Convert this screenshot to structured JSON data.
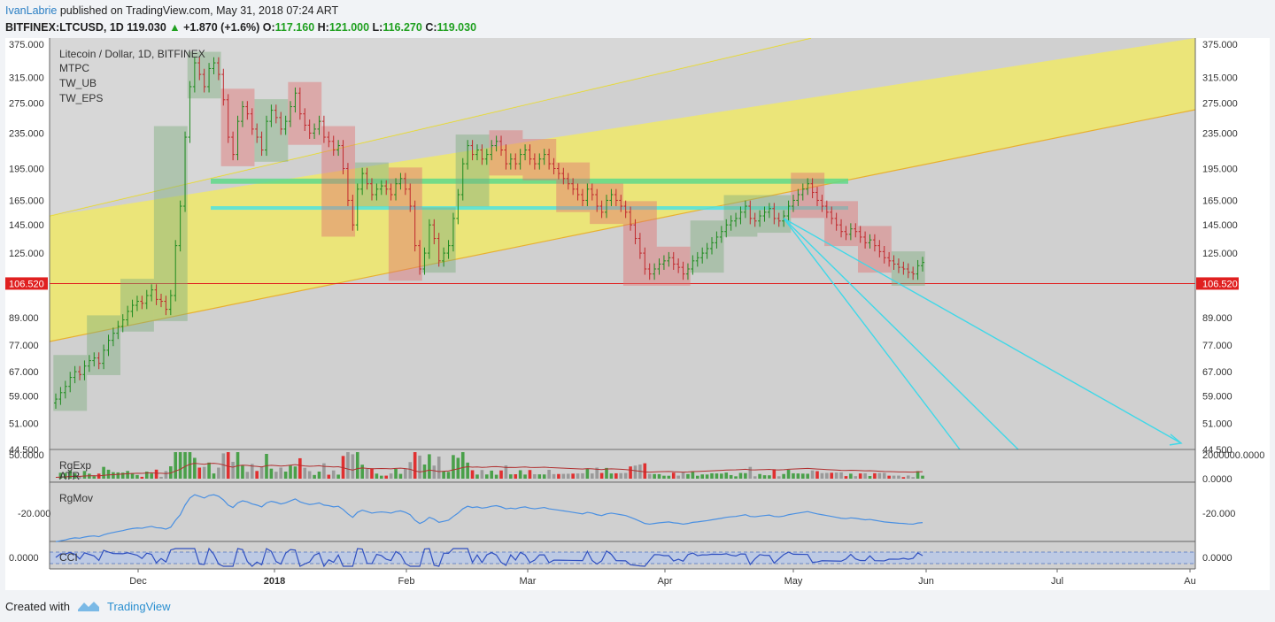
{
  "header": {
    "author": "IvanLabrie",
    "published": " published on TradingView.com, May 31, 2018 07:24 ART",
    "symbol_line": "BITFINEX:LTCUSD, 1D",
    "last": "119.030",
    "change_arrow": "▲",
    "change": "+1.870 (+1.6%)",
    "o_label": "O:",
    "o": "117.160",
    "h_label": "H:",
    "h": "121.000",
    "l_label": "L:",
    "l": "116.270",
    "c_label": "C:",
    "c": "119.030"
  },
  "legend": {
    "title": "Litecoin / Dollar, 1D, BITFINEX",
    "items": [
      "MTPC",
      "TW_UB",
      "TW_EPS"
    ]
  },
  "panes": {
    "rgexp": "RgExp",
    "atr": "ATR",
    "rgmov": "RgMov",
    "cci": "CCI"
  },
  "footer": {
    "created_with": "Created with",
    "brand": "TradingView"
  },
  "colors": {
    "up": "#1e8b1e",
    "down": "#c0282c",
    "channel": "#f0e96a",
    "zone_green": "#5fd98a",
    "zone_cyan": "#4fe3e0",
    "trend": "#3fd8e8",
    "support": "#e02020"
  },
  "chart_data": {
    "type": "candlestick",
    "symbol": "BITFINEX:LTCUSD",
    "interval": "1D",
    "scale": "log",
    "ylim": [
      44.5,
      375
    ],
    "y_ticks": [
      375,
      315,
      275,
      235,
      195,
      165,
      145,
      125,
      106.52,
      89,
      77,
      67,
      59,
      51,
      44.5
    ],
    "y_tick_labels": [
      "375.000",
      "315.000",
      "275.000",
      "235.000",
      "195.000",
      "165.000",
      "145.000",
      "125.000",
      "106.520",
      "89.000",
      "77.000",
      "67.000",
      "59.000",
      "51.000",
      "44.500"
    ],
    "x_labels": [
      "Dec",
      "2018",
      "Feb",
      "Mar",
      "Apr",
      "May",
      "Jun",
      "Jul",
      "Au"
    ],
    "support_level": 106.52,
    "support_label": "106.520",
    "zones": [
      [
        185,
        180
      ],
      [
        160,
        157
      ]
    ],
    "closes": [
      58,
      60,
      62,
      65,
      67,
      66,
      69,
      71,
      72,
      70,
      75,
      79,
      82,
      85,
      88,
      92,
      95,
      97,
      96,
      100,
      103,
      98,
      97,
      93,
      100,
      130,
      160,
      230,
      300,
      340,
      320,
      300,
      330,
      340,
      320,
      280,
      230,
      210,
      250,
      270,
      260,
      240,
      230,
      215,
      250,
      265,
      255,
      240,
      250,
      270,
      290,
      260,
      245,
      235,
      240,
      250,
      230,
      225,
      215,
      220,
      195,
      165,
      145,
      175,
      190,
      180,
      170,
      175,
      178,
      175,
      170,
      180,
      185,
      175,
      160,
      130,
      115,
      125,
      145,
      135,
      120,
      125,
      130,
      150,
      170,
      200,
      220,
      210,
      215,
      205,
      210,
      220,
      225,
      215,
      200,
      205,
      200,
      210,
      215,
      205,
      200,
      205,
      210,
      200,
      195,
      190,
      185,
      180,
      175,
      170,
      165,
      175,
      170,
      160,
      155,
      165,
      170,
      165,
      160,
      155,
      145,
      135,
      125,
      115,
      112,
      115,
      118,
      120,
      122,
      118,
      116,
      112,
      115,
      120,
      122,
      125,
      128,
      132,
      136,
      140,
      145,
      148,
      150,
      155,
      160,
      150,
      148,
      152,
      155,
      158,
      150,
      148,
      152,
      160,
      165,
      170,
      175,
      180,
      172,
      165,
      160,
      155,
      150,
      145,
      140,
      138,
      142,
      140,
      136,
      132,
      134,
      130,
      126,
      122,
      120,
      118,
      116,
      115,
      113,
      112,
      117,
      119
    ],
    "arrow_target": {
      "date": "Aug",
      "price": 46
    }
  }
}
